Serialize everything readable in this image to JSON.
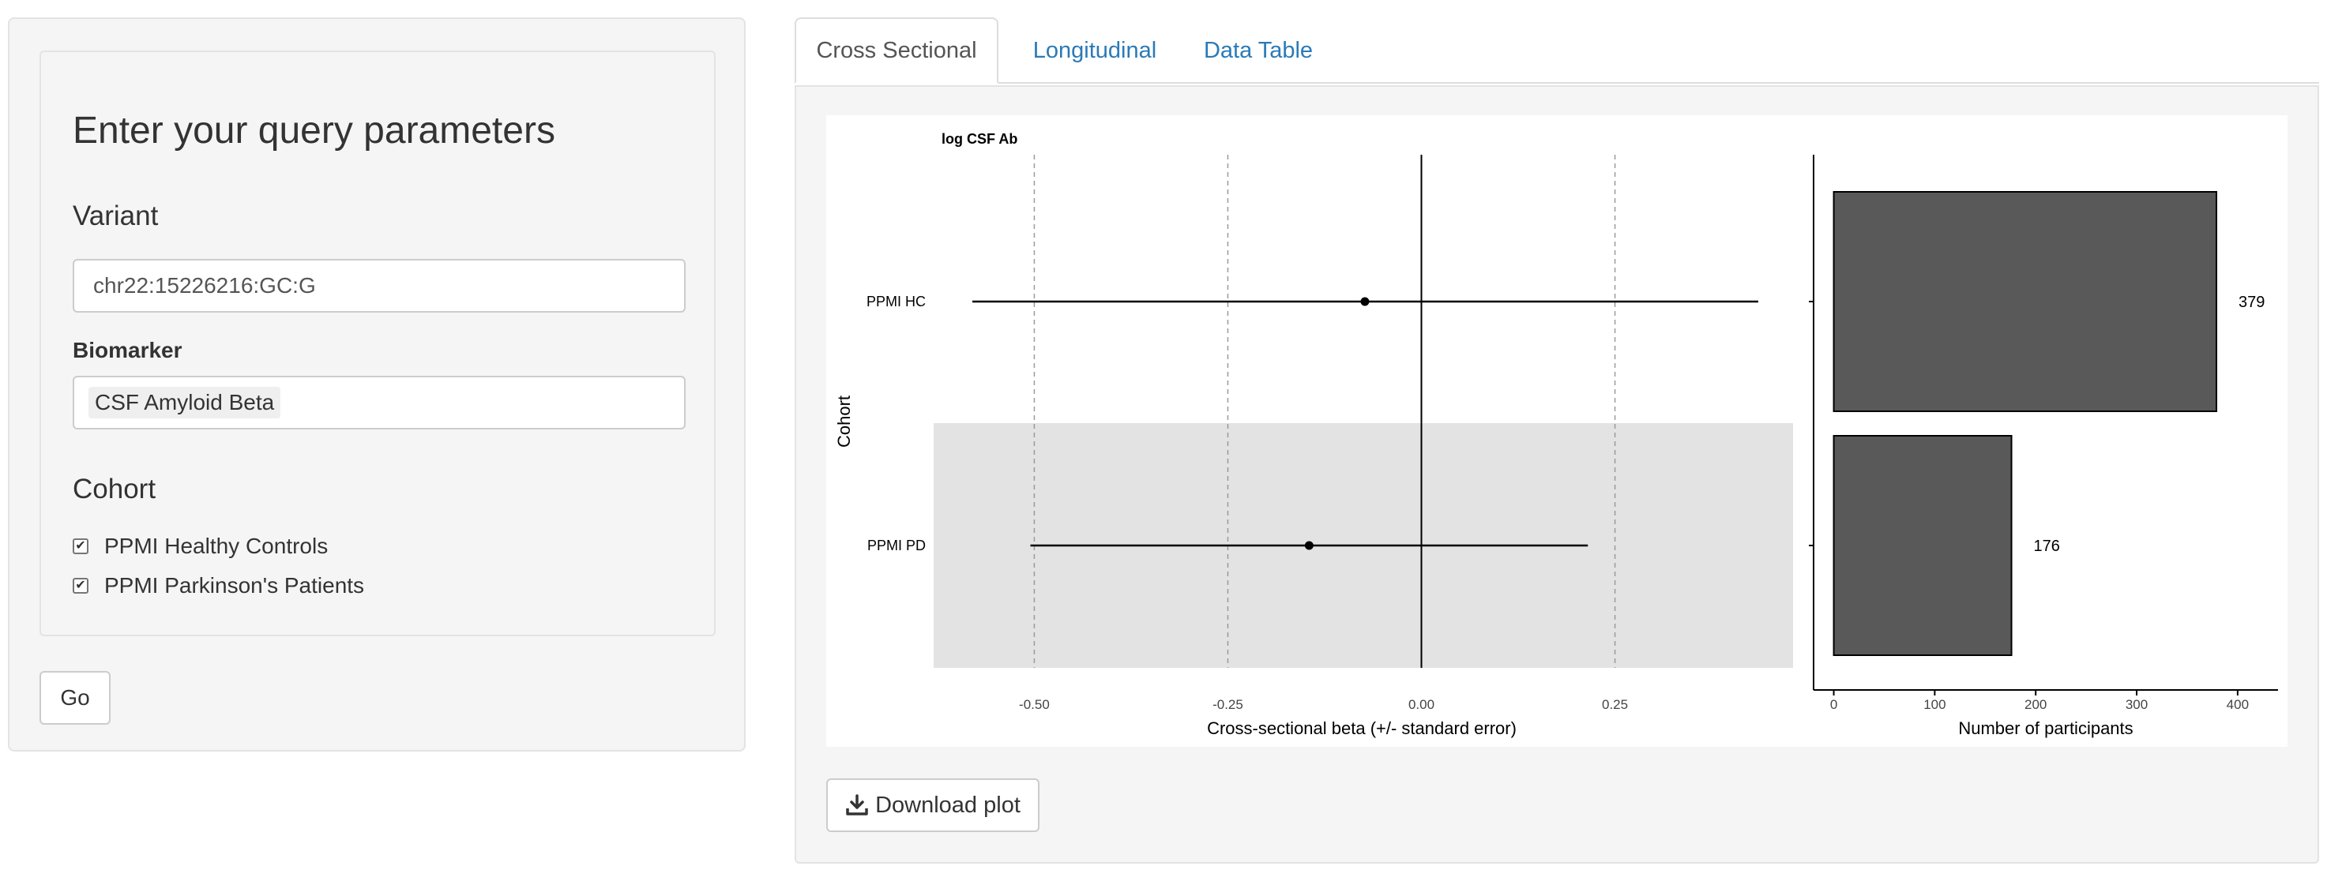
{
  "sidebar": {
    "title": "Enter your query parameters",
    "variant": {
      "heading": "Variant",
      "value": "chr22:15226216:GC:G"
    },
    "biomarker": {
      "label": "Biomarker",
      "selected": "CSF Amyloid Beta"
    },
    "cohort": {
      "heading": "Cohort",
      "options": [
        {
          "label": "PPMI Healthy Controls",
          "checked": true
        },
        {
          "label": "PPMI Parkinson's Patients",
          "checked": true
        }
      ]
    },
    "go_label": "Go"
  },
  "tabs": [
    {
      "label": "Cross Sectional",
      "active": true
    },
    {
      "label": "Longitudinal",
      "active": false
    },
    {
      "label": "Data Table",
      "active": false
    }
  ],
  "download_label": "Download plot",
  "chart_data": [
    {
      "type": "forest",
      "title": "log CSF Ab",
      "xlabel": "Cross-sectional beta (+/- standard error)",
      "ylabel": "Cohort",
      "xlim": [
        -0.63,
        0.48
      ],
      "xticks": [
        -0.5,
        -0.25,
        0.0,
        0.25
      ],
      "xtick_labels": [
        "-0.50",
        "-0.25",
        "0.00",
        "0.25"
      ],
      "gridlines": "dashed vertical at ticks, solid at 0",
      "categories": [
        "PPMI HC",
        "PPMI PD"
      ],
      "estimates": [
        -0.073,
        -0.145
      ],
      "lower": [
        -0.58,
        -0.505
      ],
      "upper": [
        0.435,
        0.215
      ]
    },
    {
      "type": "bar",
      "orientation": "horizontal",
      "xlabel": "Number of participants",
      "xlim": [
        -20,
        440
      ],
      "xticks": [
        0,
        100,
        200,
        300,
        400
      ],
      "xtick_labels": [
        "0",
        "100",
        "200",
        "300",
        "400"
      ],
      "categories": [
        "PPMI HC",
        "PPMI PD"
      ],
      "values": [
        379,
        176
      ],
      "value_labels": [
        "379",
        "176"
      ],
      "bar_color": "#595959"
    }
  ]
}
